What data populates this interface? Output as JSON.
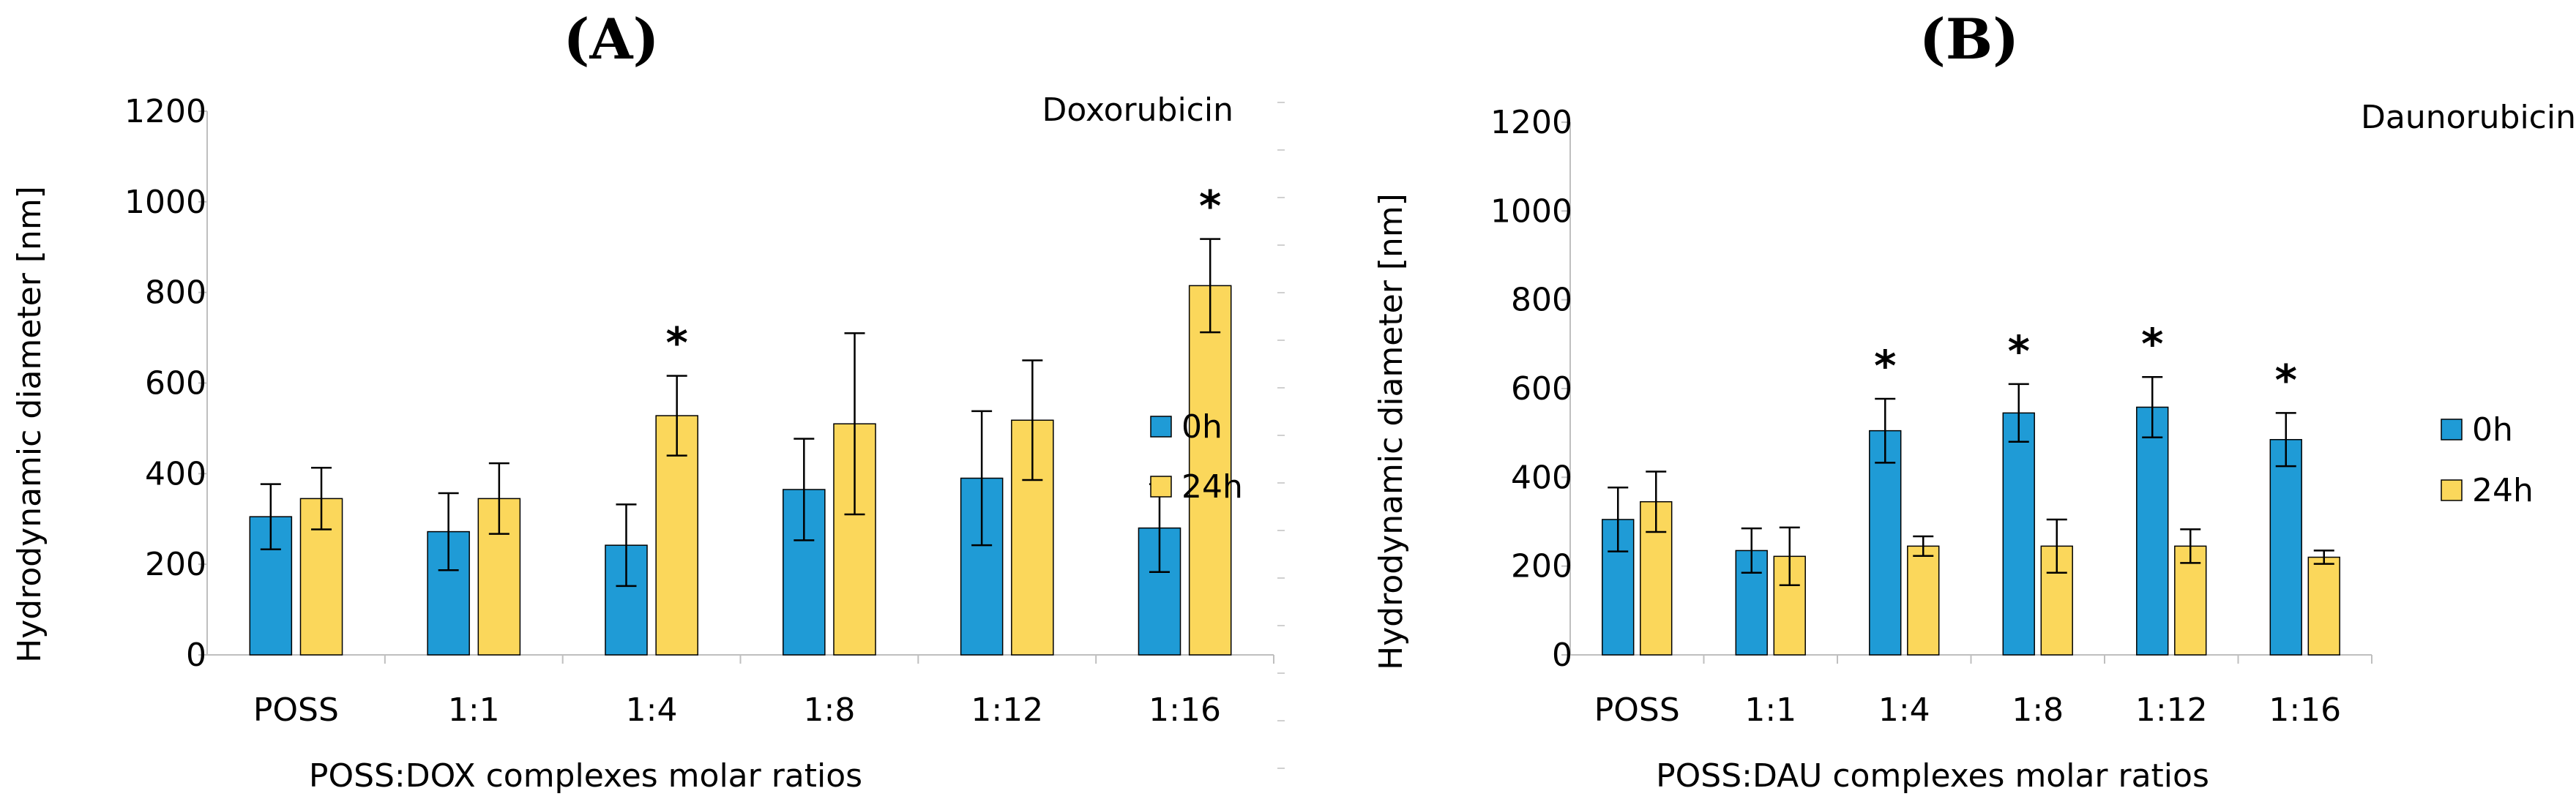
{
  "charts": [
    {
      "panel_label": "(A)",
      "chart_data": {
        "type": "bar",
        "title": "Doxorubicin",
        "xlabel": "POSS:DOX complexes molar ratios",
        "ylabel": "Hydrodynamic diameter  [nm]",
        "ylim": [
          0,
          1200
        ],
        "yticks": [
          "0",
          "200",
          "400",
          "600",
          "800",
          "1000",
          "1200"
        ],
        "categories": [
          "POSS",
          "1:1",
          "1:4",
          "1:8",
          "1:12",
          "1:16"
        ],
        "series": [
          {
            "name": "0h",
            "color": "#1f9bd6",
            "values": [
              305,
              272,
              242,
              365,
              390,
              280
            ],
            "errors": [
              72,
              85,
              90,
              112,
              148,
              97
            ]
          },
          {
            "name": "24h",
            "color": "#fbd75b",
            "values": [
              345,
              345,
              528,
              510,
              518,
              815
            ],
            "errors": [
              68,
              78,
              88,
              200,
              132,
              103
            ]
          }
        ],
        "annotations": [
          {
            "text": "*",
            "category": "1:4",
            "series": "24h"
          },
          {
            "text": "*",
            "category": "1:16",
            "series": "24h"
          }
        ],
        "legend_position": "right"
      }
    },
    {
      "panel_label": "(B)",
      "chart_data": {
        "type": "bar",
        "title": "Daunorubicin",
        "xlabel": "POSS:DAU complexes molar ratios",
        "ylabel": "Hydrodynamic diameter  [nm]",
        "ylim": [
          0,
          1200
        ],
        "yticks": [
          "0",
          "200",
          "400",
          "600",
          "800",
          "1000",
          "1200"
        ],
        "categories": [
          "POSS",
          "1:1",
          "1:4",
          "1:8",
          "1:12",
          "1:16"
        ],
        "series": [
          {
            "name": "0h",
            "color": "#1f9bd6",
            "values": [
              305,
              235,
              505,
              545,
              558,
              485
            ],
            "errors": [
              72,
              50,
              72,
              65,
              68,
              60
            ]
          },
          {
            "name": "24h",
            "color": "#fbd75b",
            "values": [
              345,
              222,
              245,
              245,
              245,
              220
            ],
            "errors": [
              68,
              65,
              22,
              60,
              38,
              15
            ]
          }
        ],
        "annotations": [
          {
            "text": "*",
            "category": "1:4",
            "series": "0h"
          },
          {
            "text": "*",
            "category": "1:8",
            "series": "0h"
          },
          {
            "text": "*",
            "category": "1:12",
            "series": "0h"
          },
          {
            "text": "*",
            "category": "1:16",
            "series": "0h"
          }
        ],
        "legend_position": "right"
      }
    }
  ]
}
